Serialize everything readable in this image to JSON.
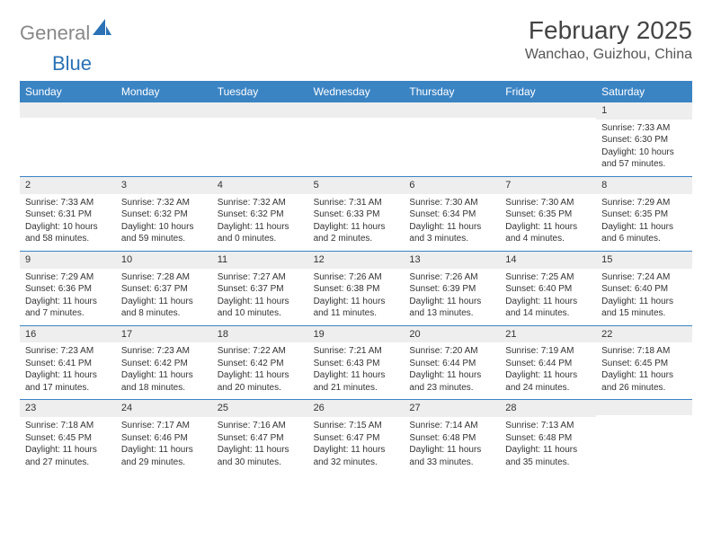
{
  "logo": {
    "text1": "General",
    "text2": "Blue"
  },
  "title": "February 2025",
  "location": "Wanchao, Guizhou, China",
  "colors": {
    "header_bg": "#3b84c4",
    "header_text": "#ffffff",
    "daynum_bg": "#eeeeee",
    "row_border": "#3b84c4",
    "body_text": "#333333",
    "logo_gray": "#888888",
    "logo_blue": "#2a72b5",
    "background": "#ffffff"
  },
  "typography": {
    "title_fontsize": 28,
    "location_fontsize": 16,
    "weekday_fontsize": 12,
    "cell_fontsize": 10
  },
  "weekdays": [
    "Sunday",
    "Monday",
    "Tuesday",
    "Wednesday",
    "Thursday",
    "Friday",
    "Saturday"
  ],
  "weeks": [
    [
      {
        "day": "",
        "sunrise": "",
        "sunset": "",
        "daylight": ""
      },
      {
        "day": "",
        "sunrise": "",
        "sunset": "",
        "daylight": ""
      },
      {
        "day": "",
        "sunrise": "",
        "sunset": "",
        "daylight": ""
      },
      {
        "day": "",
        "sunrise": "",
        "sunset": "",
        "daylight": ""
      },
      {
        "day": "",
        "sunrise": "",
        "sunset": "",
        "daylight": ""
      },
      {
        "day": "",
        "sunrise": "",
        "sunset": "",
        "daylight": ""
      },
      {
        "day": "1",
        "sunrise": "Sunrise: 7:33 AM",
        "sunset": "Sunset: 6:30 PM",
        "daylight": "Daylight: 10 hours and 57 minutes."
      }
    ],
    [
      {
        "day": "2",
        "sunrise": "Sunrise: 7:33 AM",
        "sunset": "Sunset: 6:31 PM",
        "daylight": "Daylight: 10 hours and 58 minutes."
      },
      {
        "day": "3",
        "sunrise": "Sunrise: 7:32 AM",
        "sunset": "Sunset: 6:32 PM",
        "daylight": "Daylight: 10 hours and 59 minutes."
      },
      {
        "day": "4",
        "sunrise": "Sunrise: 7:32 AM",
        "sunset": "Sunset: 6:32 PM",
        "daylight": "Daylight: 11 hours and 0 minutes."
      },
      {
        "day": "5",
        "sunrise": "Sunrise: 7:31 AM",
        "sunset": "Sunset: 6:33 PM",
        "daylight": "Daylight: 11 hours and 2 minutes."
      },
      {
        "day": "6",
        "sunrise": "Sunrise: 7:30 AM",
        "sunset": "Sunset: 6:34 PM",
        "daylight": "Daylight: 11 hours and 3 minutes."
      },
      {
        "day": "7",
        "sunrise": "Sunrise: 7:30 AM",
        "sunset": "Sunset: 6:35 PM",
        "daylight": "Daylight: 11 hours and 4 minutes."
      },
      {
        "day": "8",
        "sunrise": "Sunrise: 7:29 AM",
        "sunset": "Sunset: 6:35 PM",
        "daylight": "Daylight: 11 hours and 6 minutes."
      }
    ],
    [
      {
        "day": "9",
        "sunrise": "Sunrise: 7:29 AM",
        "sunset": "Sunset: 6:36 PM",
        "daylight": "Daylight: 11 hours and 7 minutes."
      },
      {
        "day": "10",
        "sunrise": "Sunrise: 7:28 AM",
        "sunset": "Sunset: 6:37 PM",
        "daylight": "Daylight: 11 hours and 8 minutes."
      },
      {
        "day": "11",
        "sunrise": "Sunrise: 7:27 AM",
        "sunset": "Sunset: 6:37 PM",
        "daylight": "Daylight: 11 hours and 10 minutes."
      },
      {
        "day": "12",
        "sunrise": "Sunrise: 7:26 AM",
        "sunset": "Sunset: 6:38 PM",
        "daylight": "Daylight: 11 hours and 11 minutes."
      },
      {
        "day": "13",
        "sunrise": "Sunrise: 7:26 AM",
        "sunset": "Sunset: 6:39 PM",
        "daylight": "Daylight: 11 hours and 13 minutes."
      },
      {
        "day": "14",
        "sunrise": "Sunrise: 7:25 AM",
        "sunset": "Sunset: 6:40 PM",
        "daylight": "Daylight: 11 hours and 14 minutes."
      },
      {
        "day": "15",
        "sunrise": "Sunrise: 7:24 AM",
        "sunset": "Sunset: 6:40 PM",
        "daylight": "Daylight: 11 hours and 15 minutes."
      }
    ],
    [
      {
        "day": "16",
        "sunrise": "Sunrise: 7:23 AM",
        "sunset": "Sunset: 6:41 PM",
        "daylight": "Daylight: 11 hours and 17 minutes."
      },
      {
        "day": "17",
        "sunrise": "Sunrise: 7:23 AM",
        "sunset": "Sunset: 6:42 PM",
        "daylight": "Daylight: 11 hours and 18 minutes."
      },
      {
        "day": "18",
        "sunrise": "Sunrise: 7:22 AM",
        "sunset": "Sunset: 6:42 PM",
        "daylight": "Daylight: 11 hours and 20 minutes."
      },
      {
        "day": "19",
        "sunrise": "Sunrise: 7:21 AM",
        "sunset": "Sunset: 6:43 PM",
        "daylight": "Daylight: 11 hours and 21 minutes."
      },
      {
        "day": "20",
        "sunrise": "Sunrise: 7:20 AM",
        "sunset": "Sunset: 6:44 PM",
        "daylight": "Daylight: 11 hours and 23 minutes."
      },
      {
        "day": "21",
        "sunrise": "Sunrise: 7:19 AM",
        "sunset": "Sunset: 6:44 PM",
        "daylight": "Daylight: 11 hours and 24 minutes."
      },
      {
        "day": "22",
        "sunrise": "Sunrise: 7:18 AM",
        "sunset": "Sunset: 6:45 PM",
        "daylight": "Daylight: 11 hours and 26 minutes."
      }
    ],
    [
      {
        "day": "23",
        "sunrise": "Sunrise: 7:18 AM",
        "sunset": "Sunset: 6:45 PM",
        "daylight": "Daylight: 11 hours and 27 minutes."
      },
      {
        "day": "24",
        "sunrise": "Sunrise: 7:17 AM",
        "sunset": "Sunset: 6:46 PM",
        "daylight": "Daylight: 11 hours and 29 minutes."
      },
      {
        "day": "25",
        "sunrise": "Sunrise: 7:16 AM",
        "sunset": "Sunset: 6:47 PM",
        "daylight": "Daylight: 11 hours and 30 minutes."
      },
      {
        "day": "26",
        "sunrise": "Sunrise: 7:15 AM",
        "sunset": "Sunset: 6:47 PM",
        "daylight": "Daylight: 11 hours and 32 minutes."
      },
      {
        "day": "27",
        "sunrise": "Sunrise: 7:14 AM",
        "sunset": "Sunset: 6:48 PM",
        "daylight": "Daylight: 11 hours and 33 minutes."
      },
      {
        "day": "28",
        "sunrise": "Sunrise: 7:13 AM",
        "sunset": "Sunset: 6:48 PM",
        "daylight": "Daylight: 11 hours and 35 minutes."
      },
      {
        "day": "",
        "sunrise": "",
        "sunset": "",
        "daylight": ""
      }
    ]
  ]
}
